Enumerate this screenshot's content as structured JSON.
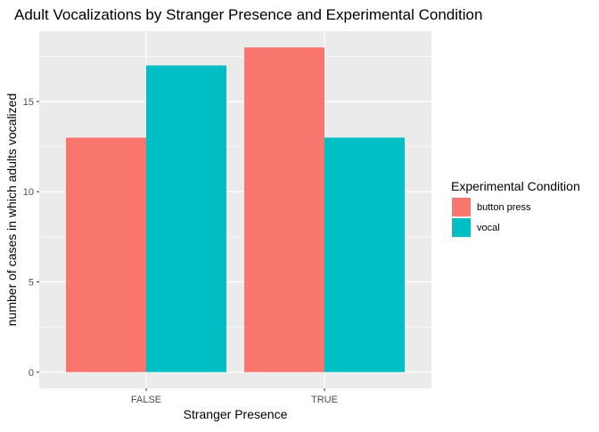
{
  "chart_data": {
    "type": "bar",
    "title": "Adult Vocalizations by Stranger Presence and Experimental Condition",
    "xlabel": "Stranger Presence",
    "ylabel": "number of cases in which adults vocalized",
    "categories": [
      "FALSE",
      "TRUE"
    ],
    "series": [
      {
        "name": "button press",
        "values": [
          13,
          18
        ],
        "color": "#F8766D"
      },
      {
        "name": "vocal",
        "values": [
          17,
          13
        ],
        "color": "#00BFC4"
      }
    ],
    "yticks": [
      0,
      5,
      10,
      15
    ],
    "ylim": [
      -0.9,
      18.9
    ],
    "legend": {
      "title": "Experimental Condition",
      "position": "right"
    },
    "panel_background": "#EBEBEB",
    "gridline_color": "#FFFFFF",
    "grid": true
  }
}
